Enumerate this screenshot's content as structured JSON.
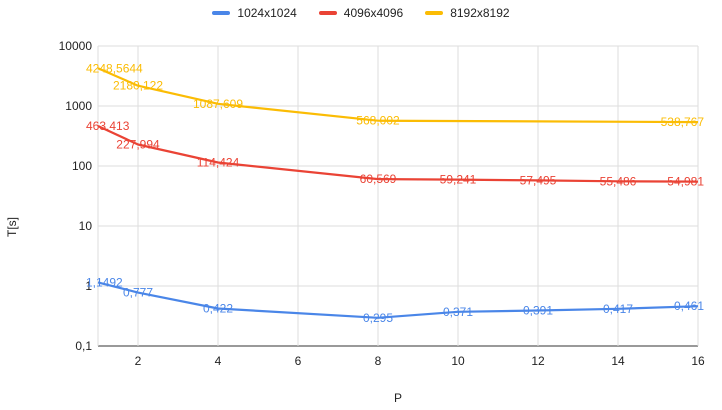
{
  "chart_data": {
    "type": "line",
    "xlabel": "P",
    "ylabel": "T[s]",
    "yscale": "log",
    "ylim": [
      0.1,
      10000
    ],
    "xlim": [
      1,
      16
    ],
    "x_ticks": [
      2,
      4,
      6,
      8,
      10,
      12,
      14,
      16
    ],
    "y_ticks": [
      {
        "value": 0.1,
        "label": "0,1"
      },
      {
        "value": 1,
        "label": "1"
      },
      {
        "value": 10,
        "label": "10"
      },
      {
        "value": 100,
        "label": "100"
      },
      {
        "value": 1000,
        "label": "1000"
      },
      {
        "value": 10000,
        "label": "10000"
      }
    ],
    "grid": true,
    "legend_position": "top-center",
    "x": [
      1,
      2,
      4,
      8,
      10,
      12,
      14,
      16
    ],
    "series": [
      {
        "name": "1024x1024",
        "color": "#4a86e8",
        "values": [
          1.1492,
          0.777,
          0.422,
          0.295,
          0.371,
          0.391,
          0.417,
          0.461
        ],
        "labels": [
          "1,1492",
          "0,777",
          "0,422",
          "0,295",
          "0,371",
          "0,391",
          "0,417",
          "0,461"
        ]
      },
      {
        "name": "4096x4096",
        "color": "#ea4335",
        "values": [
          463.413,
          227.994,
          114.424,
          60.569,
          59.241,
          57.495,
          55.486,
          54.981
        ],
        "labels": [
          "463,413",
          "227,994",
          "114,424",
          "60,569",
          "59,241",
          "57,495",
          "55,486",
          "54,981"
        ]
      },
      {
        "name": "8192x8192",
        "color": "#fbbc04",
        "values": [
          4248.5644,
          2180.122,
          1087.609,
          568.002,
          null,
          null,
          null,
          538.767
        ],
        "labels": [
          "4248,5644",
          "2180,122",
          "1087,609",
          "568,002",
          "",
          "",
          "",
          "538,767"
        ]
      }
    ]
  }
}
